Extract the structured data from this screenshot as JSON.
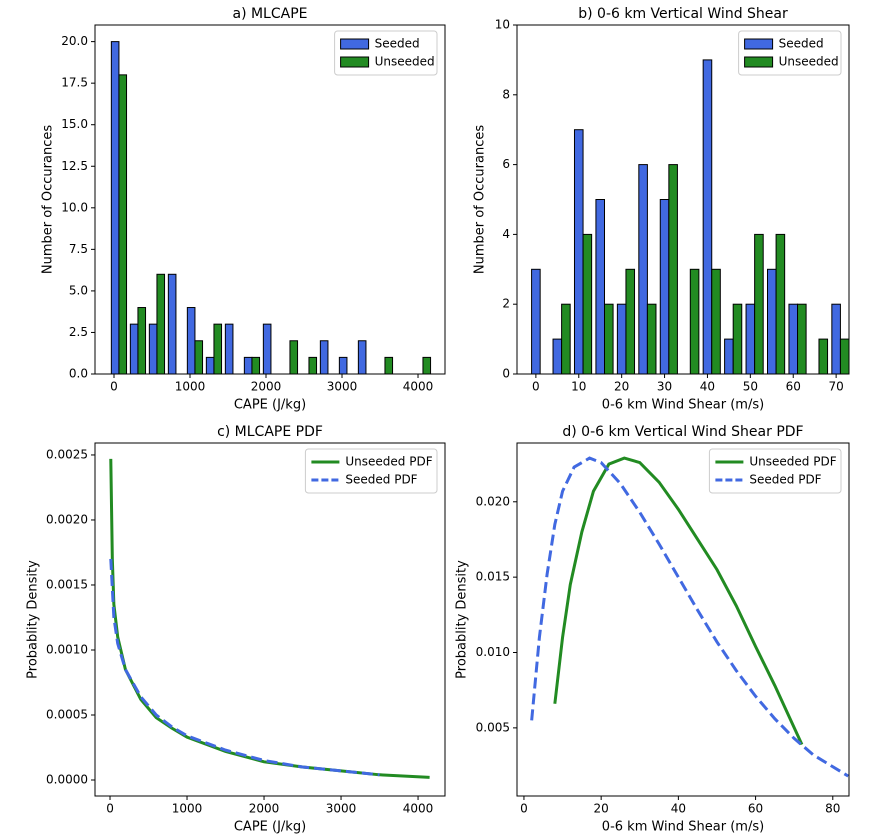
{
  "chart_data": [
    {
      "type": "histogram",
      "title": "a) MLCAPE",
      "x_label": "CAPE (J/kg)",
      "y_label": "Number of Occurances",
      "bins": [
        -60,
        190,
        440,
        690,
        940,
        1190,
        1440,
        1690,
        1940,
        2190,
        2440,
        2690,
        2940,
        3190,
        3440,
        3690,
        3940,
        4190
      ],
      "series": [
        {
          "name": "Seeded",
          "color": "#4169e1",
          "values": [
            20,
            3,
            3,
            6,
            4,
            1,
            3,
            1,
            3,
            0,
            0,
            2,
            1,
            2,
            0,
            0,
            0
          ]
        },
        {
          "name": "Unseeded",
          "color": "#228b22",
          "values": [
            18,
            4,
            6,
            0,
            2,
            3,
            0,
            1,
            0,
            2,
            1,
            0,
            0,
            0,
            1,
            0,
            1
          ]
        }
      ],
      "xlim": [
        -250,
        4355
      ],
      "ylim": [
        0,
        21
      ],
      "xticks": [
        0,
        1000,
        2000,
        3000,
        4000
      ],
      "yticks": [
        {
          "value": 0,
          "label": "0.0"
        },
        {
          "value": 2.5,
          "label": "2.5"
        },
        {
          "value": 5,
          "label": "5.0"
        },
        {
          "value": 7.5,
          "label": "7.5"
        },
        {
          "value": 10,
          "label": "10.0"
        },
        {
          "value": 12.5,
          "label": "12.5"
        },
        {
          "value": 15,
          "label": "15.0"
        },
        {
          "value": 17.5,
          "label": "17.5"
        },
        {
          "value": 20,
          "label": "20.0"
        }
      ],
      "legend": "upper right"
    },
    {
      "type": "histogram",
      "title": "b) 0-6 km Vertical Wind Shear",
      "x_label": "0-6 km Wind Shear (m/s)",
      "y_label": "Number of Occurances",
      "bins": [
        -1.5,
        3.5,
        8.5,
        13.5,
        18.5,
        23.5,
        28.5,
        33.5,
        38.5,
        43.5,
        48.5,
        53.5,
        58.5,
        63.5,
        68.5,
        73.5
      ],
      "series": [
        {
          "name": "Seeded",
          "color": "#4169e1",
          "values": [
            3,
            1,
            7,
            5,
            2,
            6,
            5,
            0,
            9,
            1,
            2,
            3,
            2,
            0,
            2
          ]
        },
        {
          "name": "Unseeded",
          "color": "#228b22",
          "values": [
            0,
            2,
            4,
            2,
            3,
            2,
            6,
            3,
            3,
            2,
            4,
            4,
            2,
            1,
            1
          ]
        }
      ],
      "xlim": [
        -4.4,
        73
      ],
      "ylim": [
        0,
        10
      ],
      "xticks": [
        0,
        10,
        20,
        30,
        40,
        50,
        60,
        70
      ],
      "yticks": [
        0,
        2,
        4,
        6,
        8,
        10
      ],
      "legend": "upper right"
    },
    {
      "type": "line",
      "title": "c) MLCAPE PDF",
      "x_label": "CAPE (J/kg)",
      "y_label": "Probablity Density",
      "series": [
        {
          "name": "Unseeded PDF",
          "color": "#228b22",
          "linestyle": "solid",
          "x": [
            10,
            30,
            50,
            100,
            200,
            400,
            600,
            800,
            1000,
            1500,
            2000,
            2500,
            3000,
            3500,
            4150
          ],
          "values": [
            0.00247,
            0.0017,
            0.00135,
            0.0011,
            0.00085,
            0.00062,
            0.00048,
            0.0004,
            0.00033,
            0.00022,
            0.00014,
            0.0001,
            7e-05,
            4e-05,
            2e-05
          ]
        },
        {
          "name": "Seeded PDF",
          "color": "#4169e1",
          "linestyle": "dashed",
          "x": [
            10,
            50,
            100,
            200,
            400,
            600,
            800,
            1000,
            1500,
            2000,
            2500,
            3000,
            3500
          ],
          "values": [
            0.0017,
            0.00125,
            0.00105,
            0.00085,
            0.00064,
            0.0005,
            0.00041,
            0.00034,
            0.00023,
            0.00015,
            0.0001,
            7e-05,
            4e-05
          ]
        }
      ],
      "xlim": [
        -195,
        4350
      ],
      "ylim": [
        -0.000123,
        0.002592
      ],
      "xticks": [
        0,
        1000,
        2000,
        3000,
        4000
      ],
      "yticks": [
        {
          "value": 0,
          "label": "0.0000"
        },
        {
          "value": 0.0005,
          "label": "0.0005"
        },
        {
          "value": 0.001,
          "label": "0.0010"
        },
        {
          "value": 0.0015,
          "label": "0.0015"
        },
        {
          "value": 0.002,
          "label": "0.0020"
        },
        {
          "value": 0.0025,
          "label": "0.0025"
        }
      ],
      "legend": "upper right"
    },
    {
      "type": "line",
      "title": "d) 0-6 km Vertical Wind Shear PDF",
      "x_label": "0-6 km Wind Shear (m/s)",
      "y_label": "Probablity Density",
      "series": [
        {
          "name": "Unseeded PDF",
          "color": "#228b22",
          "linestyle": "solid",
          "x": [
            8,
            10,
            12,
            15,
            18,
            22,
            26,
            30,
            35,
            40,
            45,
            50,
            55,
            60,
            65,
            72
          ],
          "values": [
            0.0066,
            0.011,
            0.0145,
            0.018,
            0.0207,
            0.0225,
            0.0229,
            0.0226,
            0.0213,
            0.0195,
            0.0175,
            0.0155,
            0.0131,
            0.0104,
            0.0078,
            0.0039
          ]
        },
        {
          "name": "Seeded PDF",
          "color": "#4169e1",
          "linestyle": "dashed",
          "x": [
            2,
            4,
            6,
            8,
            10,
            13,
            17,
            20,
            25,
            30,
            35,
            40,
            45,
            50,
            55,
            60,
            65,
            70,
            75,
            84
          ],
          "values": [
            0.0055,
            0.011,
            0.0152,
            0.0185,
            0.0207,
            0.0223,
            0.0229,
            0.0226,
            0.0212,
            0.0193,
            0.0172,
            0.015,
            0.0128,
            0.0107,
            0.0088,
            0.0071,
            0.0056,
            0.0043,
            0.0032,
            0.0018
          ]
        }
      ],
      "xlim": [
        -1.8,
        84.2
      ],
      "ylim": [
        0.00048,
        0.0239
      ],
      "xticks": [
        0,
        20,
        40,
        60,
        80
      ],
      "yticks": [
        {
          "value": 0.005,
          "label": "0.005"
        },
        {
          "value": 0.01,
          "label": "0.010"
        },
        {
          "value": 0.015,
          "label": "0.015"
        },
        {
          "value": 0.02,
          "label": "0.020"
        }
      ],
      "legend": "upper right"
    }
  ]
}
